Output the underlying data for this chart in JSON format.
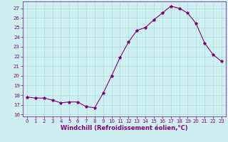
{
  "x": [
    0,
    1,
    2,
    3,
    4,
    5,
    6,
    7,
    8,
    9,
    10,
    11,
    12,
    13,
    14,
    15,
    16,
    17,
    18,
    19,
    20,
    21,
    22,
    23
  ],
  "y": [
    17.8,
    17.7,
    17.7,
    17.5,
    17.2,
    17.3,
    17.3,
    16.8,
    16.7,
    18.2,
    20.0,
    21.9,
    23.5,
    24.7,
    25.0,
    25.8,
    26.5,
    27.2,
    27.0,
    26.5,
    25.4,
    23.4,
    22.2,
    21.5
  ],
  "line_color": "#800080",
  "marker": "*",
  "marker_size": 3,
  "bg_color": "#cff0f0",
  "grid_color": "#aadddd",
  "xlabel": "Windchill (Refroidissement éolien,°C)",
  "ylim": [
    15.8,
    27.7
  ],
  "xlim": [
    -0.5,
    23.5
  ],
  "yticks": [
    16,
    17,
    18,
    19,
    20,
    21,
    22,
    23,
    24,
    25,
    26,
    27
  ],
  "xticks": [
    0,
    1,
    2,
    3,
    4,
    5,
    6,
    7,
    8,
    9,
    10,
    11,
    12,
    13,
    14,
    15,
    16,
    17,
    18,
    19,
    20,
    21,
    22,
    23
  ],
  "tick_color": "#800080",
  "tick_fontsize": 5.0,
  "xlabel_fontsize": 6.0,
  "xlabel_color": "#800080",
  "spine_color": "#800080"
}
